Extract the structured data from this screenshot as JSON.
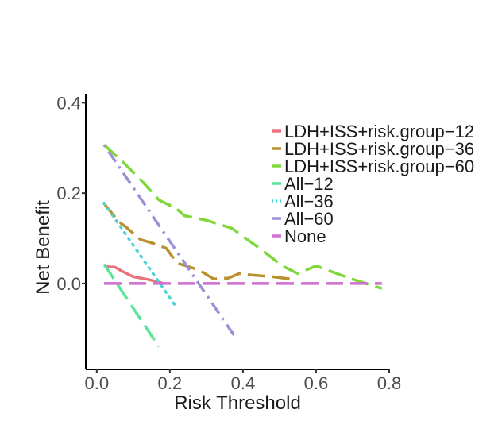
{
  "chart_data": {
    "type": "line",
    "title": "",
    "xlabel": "Risk Threshold",
    "ylabel": "Net Benefit",
    "xlim": [
      -0.03,
      0.8
    ],
    "ylim": [
      -0.19,
      0.42
    ],
    "x_ticks": [
      0.0,
      0.2,
      0.4,
      0.6,
      0.8
    ],
    "x_tick_labels": [
      "0.0",
      "0.2",
      "0.4",
      "0.6",
      "0.8"
    ],
    "y_ticks": [
      0.0,
      0.2,
      0.4
    ],
    "y_tick_labels": [
      "0.0",
      "0.2",
      "0.4"
    ],
    "grid": false,
    "legend_position": "right",
    "series": [
      {
        "name": "LDH+ISS+risk.group−12",
        "color": "#e8737b",
        "dash": "solid",
        "x": [
          0.02,
          0.03,
          0.05,
          0.07,
          0.1,
          0.14,
          0.18
        ],
        "y": [
          0.041,
          0.037,
          0.036,
          0.027,
          0.015,
          0.009,
          0.001
        ]
      },
      {
        "name": "LDH+ISS+risk.group−36",
        "color": "#b8912e",
        "dash": "longdash",
        "x": [
          0.02,
          0.06,
          0.08,
          0.12,
          0.15,
          0.19,
          0.22,
          0.28,
          0.32,
          0.36,
          0.39,
          0.42,
          0.48,
          0.54
        ],
        "y": [
          0.177,
          0.137,
          0.125,
          0.097,
          0.09,
          0.078,
          0.045,
          0.03,
          0.01,
          0.012,
          0.022,
          0.019,
          0.015,
          0.009
        ]
      },
      {
        "name": "LDH+ISS+risk.group−60",
        "color": "#7ed83a",
        "dash": "longdash",
        "x": [
          0.02,
          0.07,
          0.12,
          0.17,
          0.2,
          0.21,
          0.24,
          0.3,
          0.37,
          0.44,
          0.51,
          0.55,
          0.6,
          0.69,
          0.78
        ],
        "y": [
          0.307,
          0.27,
          0.23,
          0.185,
          0.173,
          0.171,
          0.15,
          0.14,
          0.122,
          0.081,
          0.038,
          0.022,
          0.039,
          0.012,
          -0.011
        ]
      },
      {
        "name": "All−12",
        "color": "#5ce59a",
        "dash": "longdash",
        "x": [
          0.02,
          0.17
        ],
        "y": [
          0.043,
          -0.14
        ]
      },
      {
        "name": "All−36",
        "color": "#4dd2d8",
        "dash": "dotted",
        "x": [
          0.02,
          0.22
        ],
        "y": [
          0.178,
          -0.055
        ]
      },
      {
        "name": "All−60",
        "color": "#9a92d8",
        "dash": "dotdash",
        "x": [
          0.02,
          0.38
        ],
        "y": [
          0.307,
          -0.12
        ]
      },
      {
        "name": "None",
        "color": "#cf6fce",
        "dash": "longdash",
        "x": [
          0.02,
          0.78
        ],
        "y": [
          0.0,
          0.0
        ]
      }
    ]
  }
}
